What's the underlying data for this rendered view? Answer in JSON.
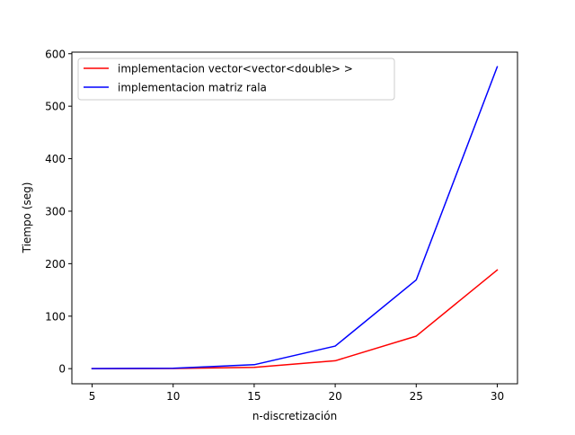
{
  "chart_data": {
    "type": "line",
    "title": "",
    "xlabel": "n-discretización",
    "ylabel": "Tiempo (seg)",
    "x": [
      5,
      10,
      15,
      20,
      25,
      30
    ],
    "xticks": [
      5,
      10,
      15,
      20,
      25,
      30
    ],
    "yticks": [
      0,
      100,
      200,
      300,
      400,
      500,
      600
    ],
    "xlim": [
      3.75,
      31.25
    ],
    "ylim": [
      -28.8,
      603
    ],
    "grid": false,
    "legend_position": "top-left",
    "series": [
      {
        "name": "implementacion vector<vector<double> >",
        "color": "#ff0000",
        "values": [
          0.05,
          0.3,
          2.5,
          15,
          62,
          188
        ]
      },
      {
        "name": "implementacion matriz rala",
        "color": "#0000ff",
        "values": [
          0.1,
          0.8,
          7.5,
          43,
          169,
          575
        ]
      }
    ]
  }
}
